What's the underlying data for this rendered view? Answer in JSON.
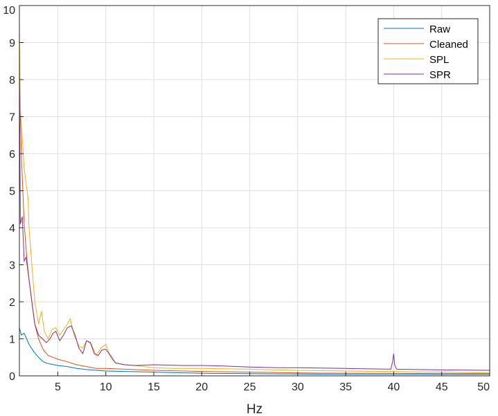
{
  "chart_data": {
    "type": "line",
    "xlabel": "Hz",
    "ylabel": "",
    "xlim": [
      1,
      50
    ],
    "ylim": [
      0,
      10
    ],
    "xticks": [
      5,
      10,
      15,
      20,
      25,
      30,
      35,
      40,
      45,
      50
    ],
    "yticks": [
      0,
      1,
      2,
      3,
      4,
      5,
      6,
      7,
      8,
      9,
      10
    ],
    "grid": true,
    "legend_position": "top-right",
    "series": [
      {
        "name": "Raw",
        "color": "#0072BD",
        "points": [
          [
            1,
            1.3
          ],
          [
            1.2,
            1.1
          ],
          [
            1.5,
            1.15
          ],
          [
            2,
            0.85
          ],
          [
            2.5,
            0.65
          ],
          [
            3,
            0.5
          ],
          [
            3.5,
            0.38
          ],
          [
            4,
            0.33
          ],
          [
            5,
            0.28
          ],
          [
            6,
            0.25
          ],
          [
            7,
            0.2
          ],
          [
            8,
            0.17
          ],
          [
            9,
            0.15
          ],
          [
            10,
            0.13
          ],
          [
            12,
            0.12
          ],
          [
            15,
            0.1
          ],
          [
            20,
            0.07
          ],
          [
            25,
            0.06
          ],
          [
            30,
            0.05
          ],
          [
            35,
            0.04
          ],
          [
            40,
            0.04
          ],
          [
            45,
            0.04
          ],
          [
            50,
            0.04
          ]
        ]
      },
      {
        "name": "Cleaned",
        "color": "#D95319",
        "points": [
          [
            1,
            8.1
          ],
          [
            1.2,
            6.0
          ],
          [
            1.5,
            4.1
          ],
          [
            1.8,
            3.1
          ],
          [
            2,
            2.6
          ],
          [
            2.3,
            2.0
          ],
          [
            2.6,
            1.4
          ],
          [
            3,
            1.0
          ],
          [
            3.5,
            0.7
          ],
          [
            4,
            0.55
          ],
          [
            5,
            0.45
          ],
          [
            6,
            0.38
          ],
          [
            7,
            0.3
          ],
          [
            8,
            0.25
          ],
          [
            9,
            0.2
          ],
          [
            10,
            0.2
          ],
          [
            12,
            0.18
          ],
          [
            15,
            0.15
          ],
          [
            20,
            0.12
          ],
          [
            25,
            0.1
          ],
          [
            30,
            0.08
          ],
          [
            35,
            0.07
          ],
          [
            40,
            0.07
          ],
          [
            45,
            0.06
          ],
          [
            50,
            0.06
          ]
        ]
      },
      {
        "name": "SPL",
        "color": "#EDB120",
        "points": [
          [
            1,
            9.4
          ],
          [
            1.1,
            7.2
          ],
          [
            1.3,
            6.4
          ],
          [
            1.5,
            5.6
          ],
          [
            1.7,
            5.2
          ],
          [
            1.9,
            4.8
          ],
          [
            2,
            4.0
          ],
          [
            2.3,
            3.0
          ],
          [
            2.6,
            2.0
          ],
          [
            3,
            1.4
          ],
          [
            3.3,
            1.75
          ],
          [
            3.6,
            1.2
          ],
          [
            4,
            1.0
          ],
          [
            4.4,
            1.25
          ],
          [
            4.8,
            1.3
          ],
          [
            5.2,
            1.1
          ],
          [
            5.6,
            1.25
          ],
          [
            6,
            1.4
          ],
          [
            6.3,
            1.55
          ],
          [
            6.7,
            1.1
          ],
          [
            7.2,
            0.8
          ],
          [
            7.6,
            0.75
          ],
          [
            8,
            0.95
          ],
          [
            8.5,
            0.85
          ],
          [
            9,
            0.55
          ],
          [
            9.5,
            0.75
          ],
          [
            10,
            0.85
          ],
          [
            10.5,
            0.5
          ],
          [
            11,
            0.35
          ],
          [
            12,
            0.3
          ],
          [
            13,
            0.28
          ],
          [
            14,
            0.25
          ],
          [
            15,
            0.22
          ],
          [
            17,
            0.2
          ],
          [
            20,
            0.2
          ],
          [
            25,
            0.18
          ],
          [
            30,
            0.15
          ],
          [
            35,
            0.13
          ],
          [
            40,
            0.12
          ],
          [
            45,
            0.1
          ],
          [
            50,
            0.08
          ]
        ]
      },
      {
        "name": "SPR",
        "color": "#7E2F8E",
        "points": [
          [
            1,
            8.2
          ],
          [
            1.1,
            4.1
          ],
          [
            1.3,
            4.3
          ],
          [
            1.5,
            3.1
          ],
          [
            1.7,
            3.2
          ],
          [
            2,
            2.6
          ],
          [
            2.3,
            2.0
          ],
          [
            2.6,
            1.4
          ],
          [
            3,
            1.1
          ],
          [
            3.4,
            1.0
          ],
          [
            3.8,
            0.9
          ],
          [
            4.2,
            1.0
          ],
          [
            4.5,
            1.15
          ],
          [
            4.8,
            1.2
          ],
          [
            5.2,
            0.95
          ],
          [
            5.6,
            1.1
          ],
          [
            6,
            1.3
          ],
          [
            6.4,
            1.35
          ],
          [
            6.8,
            1.1
          ],
          [
            7.2,
            0.75
          ],
          [
            7.6,
            0.6
          ],
          [
            8,
            0.95
          ],
          [
            8.4,
            0.9
          ],
          [
            8.8,
            0.6
          ],
          [
            9.2,
            0.55
          ],
          [
            9.6,
            0.7
          ],
          [
            10,
            0.72
          ],
          [
            10.5,
            0.55
          ],
          [
            11,
            0.35
          ],
          [
            12,
            0.3
          ],
          [
            13,
            0.28
          ],
          [
            15,
            0.3
          ],
          [
            18,
            0.28
          ],
          [
            20,
            0.28
          ],
          [
            22,
            0.27
          ],
          [
            25,
            0.24
          ],
          [
            28,
            0.22
          ],
          [
            30,
            0.22
          ],
          [
            35,
            0.2
          ],
          [
            39.7,
            0.18
          ],
          [
            39.9,
            0.4
          ],
          [
            40,
            0.6
          ],
          [
            40.1,
            0.3
          ],
          [
            40.3,
            0.18
          ],
          [
            45,
            0.16
          ],
          [
            50,
            0.15
          ]
        ]
      }
    ]
  }
}
